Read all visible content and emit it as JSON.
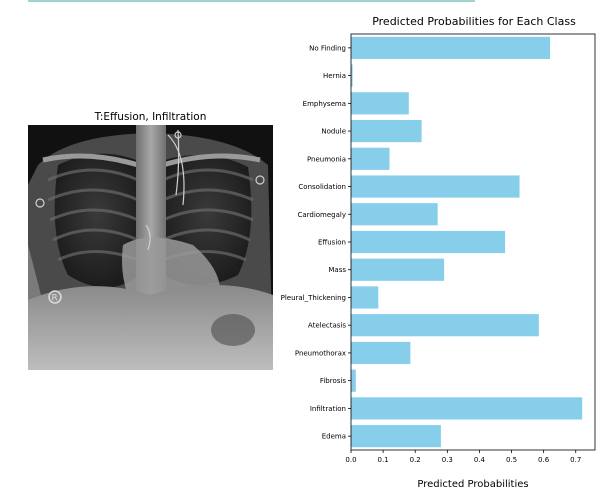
{
  "xray_panel": {
    "title": "T:Effusion, Infiltration",
    "image_description": "Frontal chest X-ray radiograph"
  },
  "colors": {
    "bar": "#87ceeb",
    "axis": "#000000",
    "background": "#ffffff"
  },
  "chart_data": {
    "type": "bar",
    "orientation": "horizontal",
    "title": "Predicted Probabilities for Each Class",
    "xlabel": "Predicted Probabilities",
    "ylabel": "",
    "categories": [
      "No Finding",
      "Hernia",
      "Emphysema",
      "Nodule",
      "Pneumonia",
      "Consolidation",
      "Cardiomegaly",
      "Effusion",
      "Mass",
      "Pleural_Thickening",
      "Atelectasis",
      "Pneumothorax",
      "Fibrosis",
      "Infiltration",
      "Edema"
    ],
    "values": [
      0.62,
      0.005,
      0.18,
      0.22,
      0.12,
      0.525,
      0.27,
      0.48,
      0.29,
      0.085,
      0.585,
      0.185,
      0.015,
      0.72,
      0.28
    ],
    "xlim": [
      0,
      0.76
    ],
    "xticks": [
      "0.0",
      "0.1",
      "0.2",
      "0.3",
      "0.4",
      "0.5",
      "0.6",
      "0.7"
    ],
    "grid": false,
    "legend": "none"
  }
}
